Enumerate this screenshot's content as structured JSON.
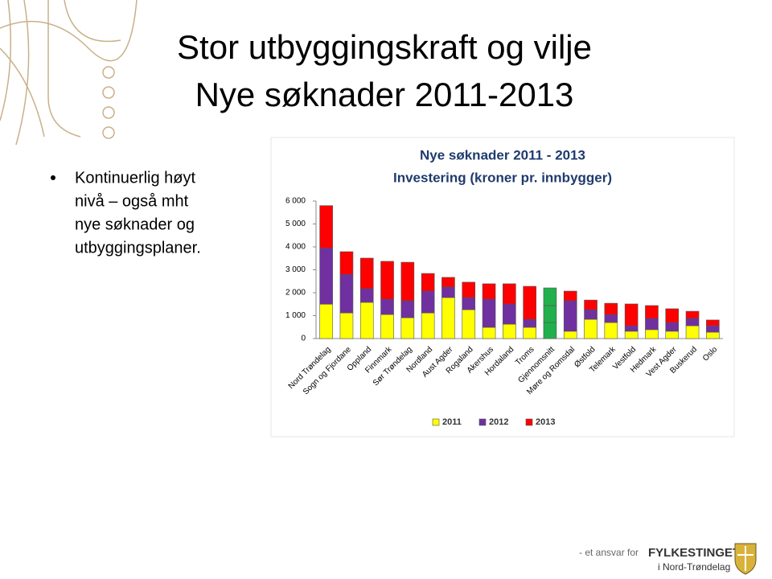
{
  "slide_title": [
    "Stor utbyggingskraft og vilje",
    "Nye søknader 2011-2013"
  ],
  "bullet_lines": [
    "Kontinuerlig høyt",
    "nivå – også mht",
    "nye søknader og",
    "utbyggingsplaner."
  ],
  "footer": {
    "prefix": "- et ansvar for",
    "brand": "FYLKESTINGET",
    "sub": "i Nord-Trøndelag"
  },
  "chart_data": {
    "type": "stacked_bar",
    "title": "Nye søknader 2011 - 2013",
    "subtitle": "Investering (kroner pr. innbygger)",
    "categories": [
      "Nord Trøndelag",
      "Sogn og Fjordane",
      "Oppland",
      "Finnmark",
      "Sør Trøndelag",
      "Nordland",
      "Aust Agder",
      "Rogaland",
      "Akershus",
      "Hordaland",
      "Troms",
      "Gjennomsnitt",
      "Møre og Romsdal",
      "Østfold",
      "Telemark",
      "Vestfold",
      "Hedmark",
      "Vest Agder",
      "Buskerud",
      "Oslo"
    ],
    "series": [
      {
        "name": "2011",
        "color": "#ffff00",
        "values": [
          1500,
          1120,
          1580,
          1050,
          910,
          1120,
          1790,
          1260,
          490,
          630,
          490,
          700,
          320,
          840,
          700,
          320,
          390,
          320,
          560,
          280
        ]
      },
      {
        "name": "2012",
        "color": "#7030a0",
        "values": [
          2450,
          1680,
          600,
          670,
          740,
          950,
          460,
          530,
          1230,
          880,
          350,
          740,
          1330,
          420,
          350,
          240,
          490,
          380,
          320,
          280
        ]
      },
      {
        "name": "2013",
        "color": "#ff0000",
        "values": [
          1850,
          990,
          1330,
          1650,
          1680,
          770,
          420,
          670,
          670,
          880,
          1440,
          770,
          420,
          420,
          490,
          950,
          560,
          600,
          310,
          250
        ]
      }
    ],
    "highlight": {
      "index": 11,
      "color": "#22b04c"
    },
    "ylim": [
      0,
      6000
    ],
    "yticks": [
      0,
      {
        "value": 1000,
        "label": "1 000"
      },
      {
        "value": 2000,
        "label": "2 000"
      },
      {
        "value": 3000,
        "label": "3 000"
      },
      {
        "value": 4000,
        "label": "4 000"
      },
      {
        "value": 5000,
        "label": "5 000"
      },
      {
        "value": 6000,
        "label": "6 000"
      }
    ],
    "grid": false,
    "legend": "bottom"
  }
}
